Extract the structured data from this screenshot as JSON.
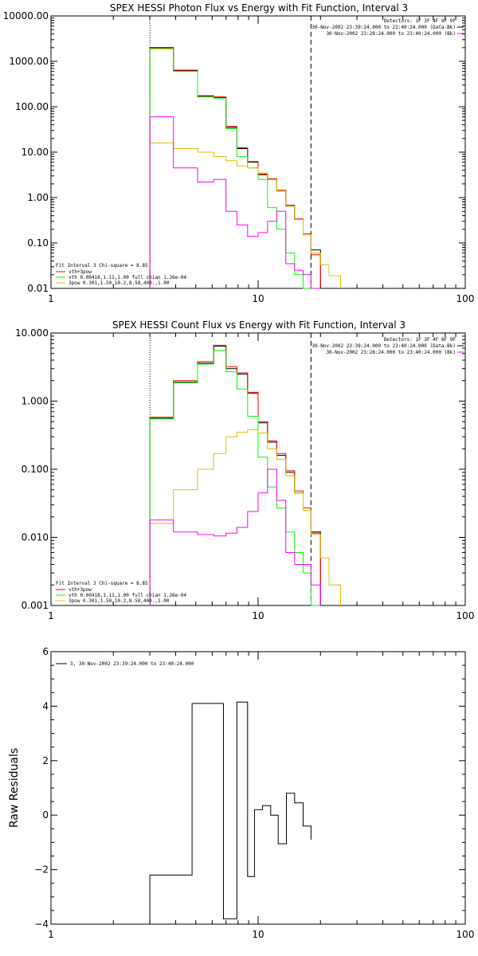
{
  "chart_data": [
    {
      "type": "line",
      "scale": "log-log",
      "title": "SPEX HESSI Photon Flux vs Energy with Fit Function, Interval 3",
      "xlim": [
        1,
        100
      ],
      "ylim": [
        0.01,
        10000
      ],
      "xticks": [
        {
          "v": 1,
          "label": "1"
        },
        {
          "v": 10,
          "label": "10"
        },
        {
          "v": 100,
          "label": "100"
        }
      ],
      "yticks": [
        {
          "v": 10000,
          "label": "10000.00"
        },
        {
          "v": 1000,
          "label": "1000.00"
        },
        {
          "v": 100,
          "label": "100.00"
        },
        {
          "v": 10,
          "label": "10.00"
        },
        {
          "v": 1,
          "label": "1.00"
        },
        {
          "v": 0.1,
          "label": "0.10"
        },
        {
          "v": 0.01,
          "label": "0.01"
        }
      ],
      "vlines": [
        {
          "x": 3.0,
          "style": "dotted"
        },
        {
          "x": 18.0,
          "style": "dashed"
        }
      ],
      "edges": [
        3.0,
        3.9,
        5.1,
        6.1,
        7.0,
        7.9,
        8.9,
        10.0,
        11.1,
        12.3,
        13.6,
        15.0,
        16.5,
        18.0,
        20.0,
        22.0,
        25.0
      ],
      "series": [
        {
          "color": "#000000",
          "values": [
            2000,
            620,
            170,
            160,
            35,
            12,
            6.0,
            3.2,
            2.5,
            1.4,
            0.65,
            0.33,
            0.15,
            0.07
          ]
        },
        {
          "color": "#ff0000",
          "values": [
            1950,
            640,
            175,
            165,
            37,
            12.5,
            6.2,
            3.3,
            2.6,
            1.45,
            0.68,
            0.34,
            0.16,
            0.055
          ]
        },
        {
          "color": "#00ff00",
          "values": [
            1900,
            600,
            165,
            155,
            33,
            8.0,
            4.5,
            2.5,
            0.6,
            0.2,
            0.06,
            0.02,
            0.009,
            0.005
          ]
        },
        {
          "color": "#e0c000",
          "values": [
            16,
            12,
            10,
            8.0,
            6.5,
            5.0,
            4.5,
            3.5,
            2.5,
            1.4,
            0.65,
            0.33,
            0.15,
            0.06,
            0.033,
            0.019,
            0.009
          ]
        },
        {
          "color": "#ff00ff",
          "values": [
            60,
            4.5,
            2.2,
            2.5,
            0.5,
            0.25,
            0.14,
            0.17,
            0.3,
            0.5,
            0.035,
            0.025,
            0.02,
            0.005
          ]
        }
      ],
      "header_lines": [
        "Detectors: 1F 3F 4F 8F 9F",
        "30-Nov-2002 23:39:24.000 to 23:40:24.000 (Data-Bk)",
        "30-Nov-2002 23:28:24.000 to 23:40:24.000 (Bk)"
      ],
      "header_colors": [
        "",
        "#000000",
        "#ff00ff"
      ],
      "legend_title": "Fit Interval 3   Chi-square = 8.85",
      "legend": [
        {
          "label": "vth+3pow",
          "color": "#ff0000"
        },
        {
          "label": "vth 0.00418,1.11,1.00  full chian 1.26e-04",
          "color": "#00ff00"
        },
        {
          "label": "3pow 0.301,1.50,10.2,8.58,400.,1.00",
          "color": "#e0c000"
        }
      ]
    },
    {
      "type": "line",
      "scale": "log-log",
      "title": "SPEX HESSI Count Flux vs Energy with Fit Function, Interval 3",
      "xlim": [
        1,
        100
      ],
      "ylim": [
        0.001,
        10
      ],
      "xticks": [
        {
          "v": 1,
          "label": "1"
        },
        {
          "v": 10,
          "label": "10"
        },
        {
          "v": 100,
          "label": "100"
        }
      ],
      "yticks": [
        {
          "v": 10,
          "label": "10.000"
        },
        {
          "v": 1,
          "label": "1.000"
        },
        {
          "v": 0.1,
          "label": "0.100"
        },
        {
          "v": 0.01,
          "label": "0.010"
        },
        {
          "v": 0.001,
          "label": "0.001"
        }
      ],
      "vlines": [
        {
          "x": 3.0,
          "style": "dotted"
        },
        {
          "x": 18.0,
          "style": "dashed"
        }
      ],
      "edges": [
        3.0,
        3.9,
        5.1,
        6.1,
        7.0,
        7.9,
        8.9,
        10.0,
        11.1,
        12.3,
        13.6,
        15.0,
        16.5,
        18.0,
        20.0,
        22.0,
        25.0
      ],
      "series": [
        {
          "color": "#000000",
          "values": [
            0.56,
            1.9,
            3.6,
            6.4,
            3.0,
            2.5,
            1.3,
            0.48,
            0.25,
            0.16,
            0.09,
            0.045,
            0.025,
            0.012
          ]
        },
        {
          "color": "#ff0000",
          "values": [
            0.58,
            2.0,
            3.8,
            6.6,
            3.2,
            2.6,
            1.35,
            0.5,
            0.26,
            0.17,
            0.095,
            0.048,
            0.027,
            0.0115
          ]
        },
        {
          "color": "#00ff00",
          "values": [
            0.55,
            1.85,
            3.5,
            5.5,
            2.7,
            1.5,
            0.6,
            0.15,
            0.055,
            0.027,
            0.012,
            0.006,
            0.003,
            0.0009
          ]
        },
        {
          "color": "#e0c000",
          "values": [
            0.016,
            0.05,
            0.1,
            0.17,
            0.3,
            0.35,
            0.38,
            0.34,
            0.2,
            0.14,
            0.08,
            0.045,
            0.025,
            0.011,
            0.005,
            0.002,
            0.001
          ]
        },
        {
          "color": "#ff00ff",
          "values": [
            0.018,
            0.012,
            0.011,
            0.0105,
            0.0115,
            0.014,
            0.024,
            0.045,
            0.1,
            0.035,
            0.006,
            0.004,
            0.004,
            0.002
          ]
        }
      ],
      "header_lines": [
        "Detectors: 1F 3F 4F 8F 9F",
        "30-Nov-2002 23:39:24.000 to 23:40:24.000 (Data-Bk)",
        "30-Nov-2002 23:28:24.000 to 23:40:24.000 (Bk)"
      ],
      "header_colors": [
        "",
        "#000000",
        "#ff00ff"
      ],
      "legend_title": "Fit Interval 3   Chi-square = 8.85",
      "legend": [
        {
          "label": "vth+3pow",
          "color": "#ff0000"
        },
        {
          "label": "vth 0.00418,1.11,1.00  full chian 1.26e-04",
          "color": "#00ff00"
        },
        {
          "label": "3pow 0.301,1.50,10.2,8.58,400.,1.00",
          "color": "#e0c000"
        }
      ]
    },
    {
      "type": "line",
      "scale": "log-linear",
      "title": "",
      "ylabel": "Raw Residuals",
      "xlim": [
        1,
        100
      ],
      "ylim": [
        -4,
        6
      ],
      "xticks": [
        {
          "v": 1,
          "label": "1"
        },
        {
          "v": 10,
          "label": "10"
        },
        {
          "v": 100,
          "label": "100"
        }
      ],
      "yticks": [
        {
          "v": 6,
          "label": "6"
        },
        {
          "v": 4,
          "label": "4"
        },
        {
          "v": 2,
          "label": "2"
        },
        {
          "v": 0,
          "label": "0"
        },
        {
          "v": -2,
          "label": "−2"
        },
        {
          "v": -4,
          "label": "−4"
        }
      ],
      "edges": [
        3.0,
        3.9,
        4.8,
        5.9,
        6.8,
        7.9,
        8.9,
        9.6,
        10.5,
        11.5,
        12.5,
        13.7,
        15.0,
        16.5,
        18.0
      ],
      "series": [
        {
          "color": "#000000",
          "values": [
            -2.2,
            -2.2,
            4.1,
            4.1,
            -3.8,
            4.15,
            -2.25,
            0.2,
            0.35,
            0.0,
            -1.05,
            0.8,
            0.45,
            -0.4,
            -0.9
          ]
        }
      ],
      "legend": [
        {
          "label": "3, 30-Nov-2002 23:39:24.000 to 23:40:24.000",
          "color": "#000000"
        }
      ]
    }
  ]
}
